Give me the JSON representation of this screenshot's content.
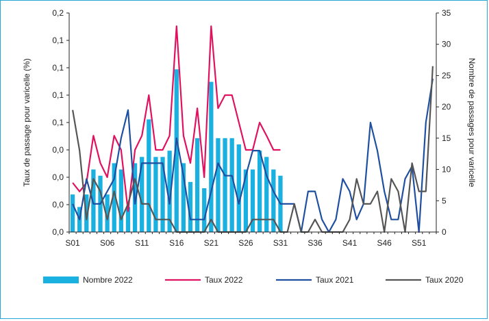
{
  "chart_data": {
    "type": "bar+line",
    "x_tick_labels": [
      "S01",
      "S06",
      "S11",
      "S16",
      "S21",
      "S26",
      "S31",
      "S36",
      "S41",
      "S46",
      "S51"
    ],
    "weeks": [
      "S01",
      "S02",
      "S03",
      "S04",
      "S05",
      "S06",
      "S07",
      "S08",
      "S09",
      "S10",
      "S11",
      "S12",
      "S13",
      "S14",
      "S15",
      "S16",
      "S17",
      "S18",
      "S19",
      "S20",
      "S21",
      "S22",
      "S23",
      "S24",
      "S25",
      "S26",
      "S27",
      "S28",
      "S29",
      "S30",
      "S31",
      "S32",
      "S33",
      "S34",
      "S35",
      "S36",
      "S37",
      "S38",
      "S39",
      "S40",
      "S41",
      "S42",
      "S43",
      "S44",
      "S45",
      "S46",
      "S47",
      "S48",
      "S49",
      "S50",
      "S51",
      "S52",
      "S53"
    ],
    "y_left": {
      "label": "Taux de passage pour varicelle (%)",
      "tick_labels": [
        "0,0",
        "0,0",
        "0,0",
        "0,0",
        "0,1",
        "0,1",
        "0,1",
        "0,1",
        "0,2"
      ],
      "ylim": [
        0,
        0.2
      ]
    },
    "y_right": {
      "label": "Nombre de passages pour varicelle",
      "tick_labels": [
        "0",
        "5",
        "10",
        "15",
        "20",
        "25",
        "30",
        "35"
      ],
      "ylim": [
        0,
        35
      ]
    },
    "series": [
      {
        "name": "Nombre 2022",
        "kind": "bar",
        "axis": "right",
        "color": "#1ab0e0",
        "values": [
          6,
          4,
          6,
          10,
          9,
          6,
          11,
          10,
          4,
          11,
          12,
          18,
          12,
          12,
          13,
          26,
          11,
          8,
          15,
          7,
          24,
          15,
          15,
          15,
          14,
          10,
          10,
          13,
          12,
          10,
          9
        ]
      },
      {
        "name": "Taux 2022",
        "kind": "line",
        "axis": "left",
        "color": "#e0115f",
        "values": [
          0.045,
          0.037,
          0.045,
          0.088,
          0.063,
          0.05,
          0.088,
          0.075,
          0.019,
          0.075,
          0.088,
          0.125,
          0.075,
          0.075,
          0.088,
          0.188,
          0.088,
          0.063,
          0.113,
          0.05,
          0.188,
          0.113,
          0.125,
          0.125,
          0.1,
          0.075,
          0.075,
          0.1,
          0.088,
          0.075,
          0.075
        ]
      },
      {
        "name": "Taux 2021",
        "kind": "line",
        "axis": "right",
        "color": "#1f4fa0",
        "values": [
          4.5,
          2,
          8.5,
          4.5,
          4.5,
          6.5,
          8.5,
          15,
          19.5,
          4.5,
          11,
          11,
          11,
          11,
          4.5,
          15,
          9,
          2,
          2,
          2,
          6.5,
          11,
          9,
          9,
          4.5,
          9,
          13,
          13,
          9,
          6.5,
          4.5,
          4.5,
          4.5,
          0,
          6.5,
          6.5,
          2,
          0,
          2,
          8.5,
          6.5,
          2,
          4.5,
          17.5,
          13,
          6.5,
          2,
          2,
          8.5,
          10.5,
          0,
          17.5,
          24.5
        ]
      },
      {
        "name": "Taux 2020",
        "kind": "line",
        "axis": "right",
        "color": "#555555",
        "values": [
          19.5,
          13,
          2,
          8.5,
          6.5,
          2,
          6.5,
          2,
          4.5,
          8.5,
          4.5,
          4.5,
          2,
          2,
          2,
          0,
          0,
          0,
          0,
          0,
          2,
          0,
          0,
          0,
          0,
          0,
          2,
          2,
          2,
          2,
          0,
          0,
          4.5,
          0,
          0,
          2,
          0,
          0,
          0,
          0,
          2,
          8.5,
          4.5,
          4.5,
          6.5,
          0,
          8.5,
          6.5,
          0,
          11,
          6.5,
          6.5,
          26.5
        ]
      }
    ],
    "legend": {
      "placement": "bottom",
      "items": [
        "Nombre 2022",
        "Taux 2022",
        "Taux 2021",
        "Taux 2020"
      ]
    }
  }
}
